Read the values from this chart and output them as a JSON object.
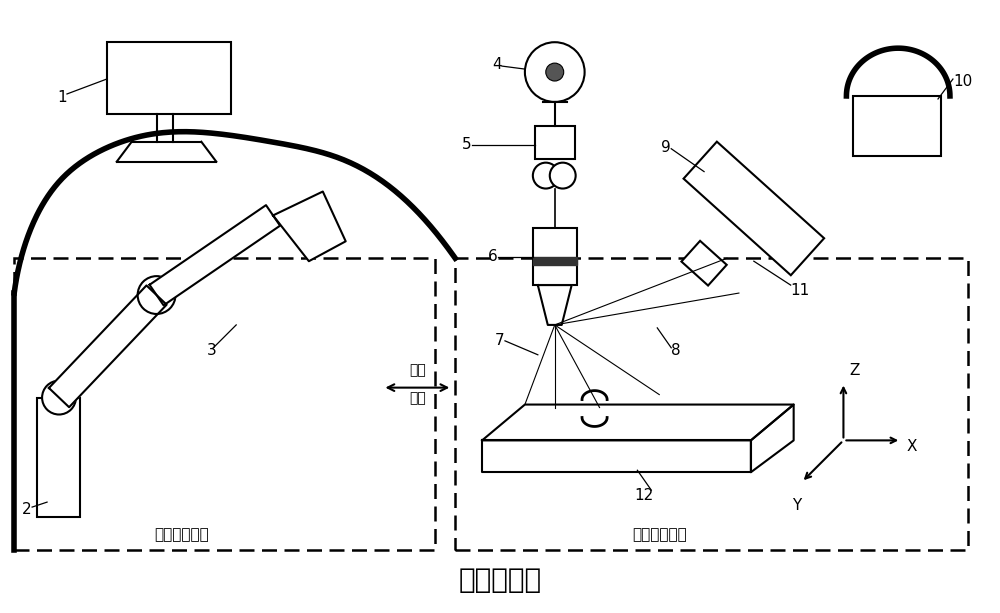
{
  "title": "真空工作室",
  "title_fontsize": 20,
  "bg_color": "#ffffff",
  "line_color": "#000000",
  "left_box_label": "减材加工部分",
  "right_box_label": "增材加工部分",
  "coprocess_label1": "协同",
  "coprocess_label2": "加工",
  "axis_z": "Z",
  "axis_x": "X",
  "axis_y": "Y",
  "labels": [
    "1",
    "2",
    "3",
    "4",
    "5",
    "6",
    "7",
    "8",
    "9",
    "10",
    "11",
    "12"
  ]
}
